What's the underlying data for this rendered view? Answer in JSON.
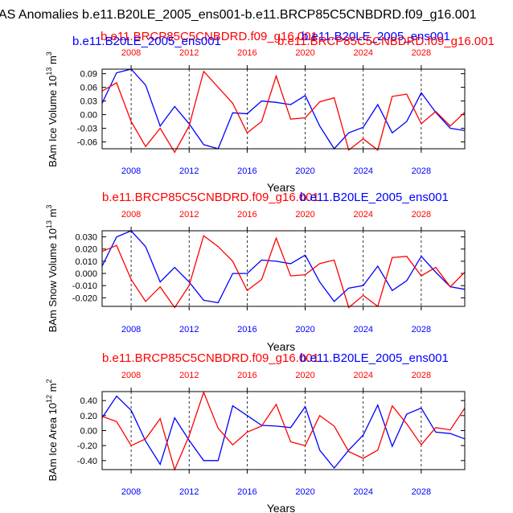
{
  "title": "AS Anomalies b.e11.B20LE_2005_ens001-b.e11.BRCP85C5CNBDRD.f09_g16.001",
  "colors": {
    "ens_a": "#0000ff",
    "ens_b": "#ff0000"
  },
  "legend": {
    "a_label": "b.e11.B20LE_2005_ens001",
    "b_label": "b.e11.BRCP85C5CNBDRD.f09_g16.001"
  },
  "chart_data": [
    {
      "type": "line",
      "title": "",
      "xlabel": "Years",
      "ylabel_base": "BAm Ice Volume 10",
      "ylabel_exp": "13",
      "ylabel_unit": " m",
      "ylabel_unit_exp": "3",
      "x": [
        2006,
        2007,
        2008,
        2009,
        2010,
        2011,
        2012,
        2013,
        2014,
        2015,
        2016,
        2017,
        2018,
        2019,
        2020,
        2021,
        2022,
        2023,
        2024,
        2025,
        2026,
        2027,
        2028,
        2029,
        2030,
        2031
      ],
      "xlim": [
        2006,
        2031
      ],
      "ylim": [
        -0.075,
        0.1
      ],
      "yticks": [
        -0.06,
        -0.03,
        0.0,
        0.03,
        0.06,
        0.09
      ],
      "ytick_labels": [
        "-0.06",
        "-0.03",
        "0.00",
        "0.03",
        "0.06",
        "0.09"
      ],
      "xticks": [
        2008,
        2012,
        2016,
        2020,
        2024,
        2028
      ],
      "xtick_labels": [
        "2008",
        "2012",
        "2016",
        "2020",
        "2024",
        "2028"
      ],
      "series": [
        {
          "name": "b.e11.B20LE_2005_ens001",
          "color": "#0000ff",
          "values": [
            0.025,
            0.092,
            0.1,
            0.065,
            -0.025,
            0.018,
            -0.02,
            -0.066,
            -0.075,
            0.004,
            0.002,
            0.03,
            0.027,
            0.022,
            0.042,
            -0.025,
            -0.075,
            -0.04,
            -0.028,
            0.022,
            -0.04,
            -0.015,
            0.048,
            0.005,
            -0.03,
            -0.035
          ]
        },
        {
          "name": "b.e11.BRCP85C5CNBDRD.f09_g16.001",
          "color": "#ff0000",
          "values": [
            0.052,
            0.07,
            -0.015,
            -0.07,
            -0.03,
            -0.083,
            -0.025,
            0.095,
            0.06,
            0.025,
            -0.04,
            -0.015,
            0.085,
            -0.01,
            -0.007,
            0.028,
            0.037,
            -0.078,
            -0.053,
            -0.078,
            0.04,
            0.045,
            -0.02,
            0.007,
            -0.025,
            0.005
          ]
        }
      ]
    },
    {
      "type": "line",
      "title": "",
      "xlabel": "Years",
      "ylabel_base": "BAm Snow Volume 10",
      "ylabel_exp": "13",
      "ylabel_unit": " m",
      "ylabel_unit_exp": "3",
      "x": [
        2006,
        2007,
        2008,
        2009,
        2010,
        2011,
        2012,
        2013,
        2014,
        2015,
        2016,
        2017,
        2018,
        2019,
        2020,
        2021,
        2022,
        2023,
        2024,
        2025,
        2026,
        2027,
        2028,
        2029,
        2030,
        2031
      ],
      "xlim": [
        2006,
        2031
      ],
      "ylim": [
        -0.027,
        0.035
      ],
      "yticks": [
        -0.02,
        -0.01,
        0.0,
        0.01,
        0.02,
        0.03
      ],
      "ytick_labels": [
        "-0.020",
        "-0.010",
        "0.000",
        "0.010",
        "0.020",
        "0.030"
      ],
      "xticks": [
        2008,
        2012,
        2016,
        2020,
        2024,
        2028
      ],
      "xtick_labels": [
        "2008",
        "2012",
        "2016",
        "2020",
        "2024",
        "2028"
      ],
      "series": [
        {
          "name": "b.e11.B20LE_2005_ens001",
          "color": "#0000ff",
          "values": [
            0.006,
            0.03,
            0.035,
            0.022,
            -0.007,
            0.005,
            -0.007,
            -0.022,
            -0.024,
            0.0,
            0.0,
            0.011,
            0.01,
            0.008,
            0.015,
            -0.007,
            -0.023,
            -0.012,
            -0.01,
            0.006,
            -0.014,
            -0.006,
            0.014,
            0.001,
            -0.011,
            -0.013
          ]
        },
        {
          "name": "b.e11.BRCP85C5CNBDRD.f09_g16.001",
          "color": "#ff0000",
          "values": [
            0.018,
            0.023,
            -0.005,
            -0.023,
            -0.011,
            -0.028,
            -0.01,
            0.031,
            0.022,
            0.01,
            -0.014,
            -0.005,
            0.029,
            -0.002,
            -0.001,
            0.008,
            0.011,
            -0.028,
            -0.018,
            -0.027,
            0.013,
            0.014,
            -0.002,
            0.005,
            -0.011,
            0.001
          ]
        }
      ]
    },
    {
      "type": "line",
      "title": "",
      "xlabel": "Years",
      "ylabel_base": "BAm Ice Area 10",
      "ylabel_exp": "12",
      "ylabel_unit": " m",
      "ylabel_unit_exp": "2",
      "x": [
        2006,
        2007,
        2008,
        2009,
        2010,
        2011,
        2012,
        2013,
        2014,
        2015,
        2016,
        2017,
        2018,
        2019,
        2020,
        2021,
        2022,
        2023,
        2024,
        2025,
        2026,
        2027,
        2028,
        2029,
        2030,
        2031
      ],
      "xlim": [
        2006,
        2031
      ],
      "ylim": [
        -0.52,
        0.52
      ],
      "yticks": [
        -0.4,
        -0.2,
        0.0,
        0.2,
        0.4
      ],
      "ytick_labels": [
        "-0.40",
        "-0.20",
        "0.00",
        "0.20",
        "0.40"
      ],
      "xticks": [
        2008,
        2012,
        2016,
        2020,
        2024,
        2028
      ],
      "xtick_labels": [
        "2008",
        "2012",
        "2016",
        "2020",
        "2024",
        "2028"
      ],
      "series": [
        {
          "name": "b.e11.B20LE_2005_ens001",
          "color": "#0000ff",
          "values": [
            0.17,
            0.46,
            0.27,
            -0.14,
            -0.45,
            0.17,
            -0.13,
            -0.4,
            -0.4,
            0.33,
            0.2,
            0.07,
            0.06,
            0.04,
            0.32,
            -0.26,
            -0.5,
            -0.26,
            -0.06,
            0.34,
            -0.21,
            0.22,
            0.3,
            -0.02,
            -0.04,
            -0.11
          ]
        },
        {
          "name": "b.e11.BRCP85C5CNBDRD.f09_g16.001",
          "color": "#ff0000",
          "values": [
            0.19,
            0.12,
            -0.2,
            -0.11,
            0.16,
            -0.52,
            -0.07,
            0.51,
            0.03,
            -0.19,
            -0.02,
            0.06,
            0.35,
            -0.15,
            -0.2,
            0.2,
            0.06,
            -0.28,
            -0.37,
            -0.26,
            0.33,
            0.09,
            -0.19,
            0.04,
            0.01,
            0.3
          ]
        }
      ]
    }
  ]
}
